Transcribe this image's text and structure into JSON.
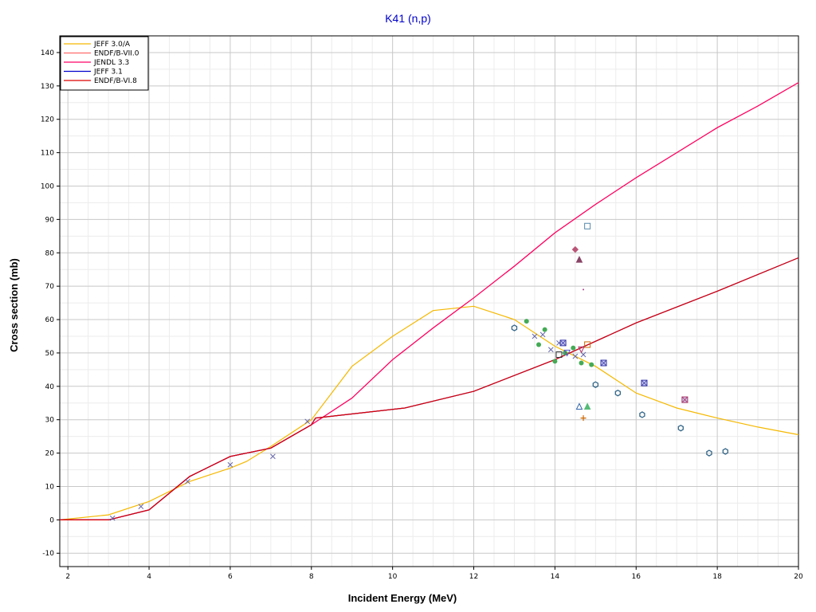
{
  "chart_data": {
    "type": "line",
    "title": "K41 (n,p)",
    "xlabel": "Incident Energy (MeV)",
    "ylabel": "Cross section (mb)",
    "xlim": [
      1.8,
      20
    ],
    "ylim": [
      -14,
      145
    ],
    "x_ticks": [
      2,
      4,
      6,
      8,
      10,
      12,
      14,
      16,
      18,
      20
    ],
    "y_ticks": [
      -10,
      0,
      10,
      20,
      30,
      40,
      50,
      60,
      70,
      80,
      90,
      100,
      110,
      120,
      130,
      140
    ],
    "grid": true,
    "minor_grid": true,
    "legend_position": "top-left",
    "series": [
      {
        "name": "JEFF 3.0/A",
        "color": "#f5b800",
        "x": [
          1.8,
          3,
          4,
          5,
          6,
          6.4,
          7,
          8,
          9,
          10,
          11,
          12,
          13,
          14,
          15,
          16,
          17,
          18,
          19,
          20
        ],
        "y": [
          0,
          1.5,
          5.5,
          11.5,
          15.5,
          17.5,
          22,
          30,
          46,
          55,
          62.7,
          64,
          60,
          52,
          46,
          38,
          33.5,
          30.5,
          27.8,
          25.5
        ]
      },
      {
        "name": "ENDF/B-VII.0",
        "color": "#ff6a6a",
        "x": [
          1.8,
          3,
          4,
          5,
          6,
          7,
          8,
          9,
          10,
          11,
          12,
          13,
          14,
          15,
          16,
          17,
          18,
          19,
          20
        ],
        "y": [
          0,
          0,
          3,
          13,
          19,
          21.5,
          28.5,
          36.5,
          48,
          57.5,
          66.5,
          76,
          86,
          94.5,
          102.5,
          110,
          117.5,
          124,
          131
        ]
      },
      {
        "name": "JENDL 3.3",
        "color": "#ff0066",
        "x": [
          1.8,
          3,
          4,
          5,
          6,
          7,
          8,
          9,
          10,
          11,
          12,
          13,
          14,
          15,
          16,
          17,
          18,
          19,
          20
        ],
        "y": [
          0,
          0,
          3,
          13,
          19,
          21.5,
          28.5,
          36.5,
          48,
          57.5,
          66.5,
          76,
          86,
          94.5,
          102.5,
          110,
          117.5,
          124,
          131
        ]
      },
      {
        "name": "JEFF 3.1",
        "color": "#0000cc",
        "x": [
          1.8,
          3,
          4,
          5,
          6,
          7,
          8,
          8.1,
          10.3,
          12,
          14,
          16,
          18,
          20
        ],
        "y": [
          0,
          0,
          3,
          13,
          19,
          21.5,
          28.5,
          30.5,
          33.5,
          38.5,
          48,
          59,
          68.5,
          78.5
        ]
      },
      {
        "name": "ENDF/B-VI.8",
        "color": "#dd0000",
        "x": [
          1.8,
          3,
          4,
          5,
          6,
          7,
          8,
          8.1,
          10.3,
          12,
          14,
          16,
          18,
          20
        ],
        "y": [
          0,
          0,
          3,
          13,
          19,
          21.5,
          28.5,
          30.5,
          33.5,
          38.5,
          48,
          59,
          68.5,
          78.5
        ]
      }
    ],
    "experimental_points": [
      {
        "marker": "cross",
        "color": "#6666aa",
        "x": 3.1,
        "y": 0.5
      },
      {
        "marker": "cross",
        "color": "#6666aa",
        "x": 3.8,
        "y": 4
      },
      {
        "marker": "cross",
        "color": "#6666aa",
        "x": 4.95,
        "y": 11.5
      },
      {
        "marker": "cross",
        "color": "#6666aa",
        "x": 6.0,
        "y": 16.5
      },
      {
        "marker": "cross",
        "color": "#6666aa",
        "x": 7.05,
        "y": 19
      },
      {
        "marker": "cross",
        "color": "#6666aa",
        "x": 7.9,
        "y": 29.5
      },
      {
        "marker": "cross",
        "color": "#6666aa",
        "x": 13.5,
        "y": 55
      },
      {
        "marker": "cross",
        "color": "#6666aa",
        "x": 13.7,
        "y": 55.5
      },
      {
        "marker": "cross",
        "color": "#6666aa",
        "x": 13.9,
        "y": 51
      },
      {
        "marker": "cross",
        "color": "#6666aa",
        "x": 14.1,
        "y": 53
      },
      {
        "marker": "cross",
        "color": "#6666aa",
        "x": 14.5,
        "y": 49
      },
      {
        "marker": "cross",
        "color": "#6666aa",
        "x": 14.7,
        "y": 49.5
      },
      {
        "marker": "dot",
        "color": "#44aa55",
        "x": 13.3,
        "y": 59.5
      },
      {
        "marker": "dot",
        "color": "#44aa55",
        "x": 13.6,
        "y": 52.5
      },
      {
        "marker": "dot",
        "color": "#44aa55",
        "x": 13.75,
        "y": 57
      },
      {
        "marker": "dot",
        "color": "#44aa55",
        "x": 14.0,
        "y": 47.5
      },
      {
        "marker": "dot",
        "color": "#44aa55",
        "x": 14.25,
        "y": 50
      },
      {
        "marker": "dot",
        "color": "#44aa55",
        "x": 14.45,
        "y": 51.5
      },
      {
        "marker": "dot",
        "color": "#44aa55",
        "x": 14.65,
        "y": 47
      },
      {
        "marker": "dot",
        "color": "#44aa55",
        "x": 14.9,
        "y": 46.5
      },
      {
        "marker": "hexagon",
        "color": "#336688",
        "x": 13.0,
        "y": 57.5
      },
      {
        "marker": "hexagon",
        "color": "#336688",
        "x": 15.0,
        "y": 40.5
      },
      {
        "marker": "hexagon",
        "color": "#336688",
        "x": 15.55,
        "y": 38
      },
      {
        "marker": "hexagon",
        "color": "#336688",
        "x": 16.15,
        "y": 31.5
      },
      {
        "marker": "hexagon",
        "color": "#336688",
        "x": 17.1,
        "y": 27.5
      },
      {
        "marker": "hexagon",
        "color": "#336688",
        "x": 17.8,
        "y": 20
      },
      {
        "marker": "hexagon",
        "color": "#336688",
        "x": 18.2,
        "y": 20.5
      },
      {
        "marker": "square",
        "color": "#5588aa",
        "x": 14.8,
        "y": 88
      },
      {
        "marker": "square",
        "color": "#333333",
        "x": 14.1,
        "y": 49.5
      },
      {
        "marker": "square",
        "color": "#cc6600",
        "x": 14.8,
        "y": 52.5
      },
      {
        "marker": "boxx",
        "color": "#3333aa",
        "x": 14.2,
        "y": 53
      },
      {
        "marker": "boxx",
        "color": "#3333aa",
        "x": 15.2,
        "y": 47
      },
      {
        "marker": "boxx",
        "color": "#3333aa",
        "x": 16.2,
        "y": 41
      },
      {
        "marker": "boxx",
        "color": "#aa3366",
        "x": 17.2,
        "y": 36
      },
      {
        "marker": "tri-down",
        "color": "#5555cc",
        "x": 14.3,
        "y": 50
      },
      {
        "marker": "tri-down",
        "color": "#aa3366",
        "x": 14.65,
        "y": 51
      },
      {
        "marker": "triangle-open",
        "color": "#3366aa",
        "x": 14.6,
        "y": 34
      },
      {
        "marker": "triangle",
        "color": "#55bb77",
        "x": 14.8,
        "y": 34
      },
      {
        "marker": "triangle",
        "color": "#884466",
        "x": 14.6,
        "y": 78
      },
      {
        "marker": "diamond",
        "color": "#bb5577",
        "x": 14.5,
        "y": 81
      },
      {
        "marker": "plus",
        "color": "#cc6600",
        "x": 14.7,
        "y": 30.5
      },
      {
        "marker": "dot-small",
        "color": "#aa4488",
        "x": 14.7,
        "y": 69
      }
    ]
  }
}
